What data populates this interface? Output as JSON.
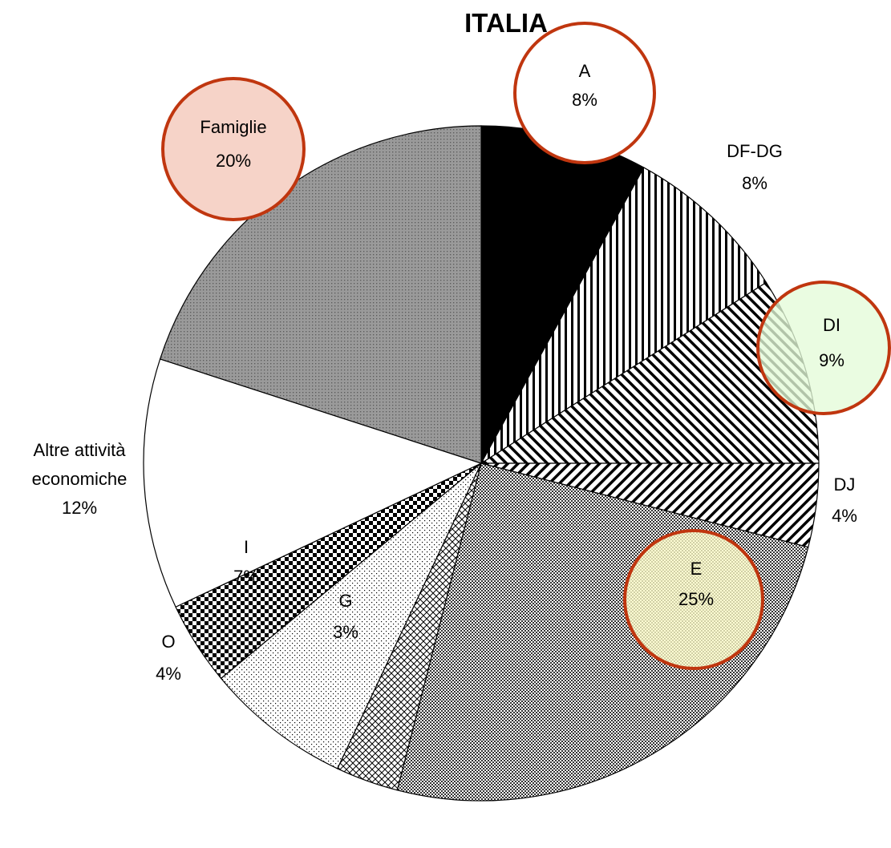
{
  "chart_data": {
    "type": "pie",
    "title": "ITALIA",
    "slices": [
      {
        "label": "A",
        "value": 8,
        "value_label": "8%",
        "pattern": "solid-black",
        "highlight": "circle-white"
      },
      {
        "label": "DF-DG",
        "value": 8,
        "value_label": "8%",
        "pattern": "vertical-stripes",
        "highlight": "none"
      },
      {
        "label": "DI",
        "value": 9,
        "value_label": "9%",
        "pattern": "diagonal-stripes",
        "highlight": "circle-green"
      },
      {
        "label": "DJ",
        "value": 4,
        "value_label": "4%",
        "pattern": "reverse-diagonal-stripes",
        "highlight": "none"
      },
      {
        "label": "E",
        "value": 25,
        "value_label": "25%",
        "pattern": "fine-checker",
        "highlight": "circle-yellow"
      },
      {
        "label": "G",
        "value": 3,
        "value_label": "3%",
        "pattern": "crosshatch",
        "highlight": "none"
      },
      {
        "label": "I",
        "value": 7,
        "value_label": "7%",
        "pattern": "sparse-dots",
        "highlight": "none"
      },
      {
        "label": "O",
        "value": 4,
        "value_label": "4%",
        "pattern": "coarse-checker",
        "highlight": "none"
      },
      {
        "label": "Altre attività economiche",
        "value": 12,
        "value_label": "12%",
        "pattern": "white",
        "highlight": "none"
      },
      {
        "label": "Famiglie",
        "value": 20,
        "value_label": "20%",
        "pattern": "gray-dots",
        "highlight": "circle-pink"
      }
    ],
    "start_angle_deg": 0,
    "direction": "clockwise",
    "legend": "none"
  },
  "colors": {
    "highlight_stroke": "#c0360f",
    "highlight_pink": "#f6d3c8",
    "highlight_green": "#e4fbd9",
    "highlight_yellow": "#fdfbc6",
    "slice_outline": "#000000"
  }
}
